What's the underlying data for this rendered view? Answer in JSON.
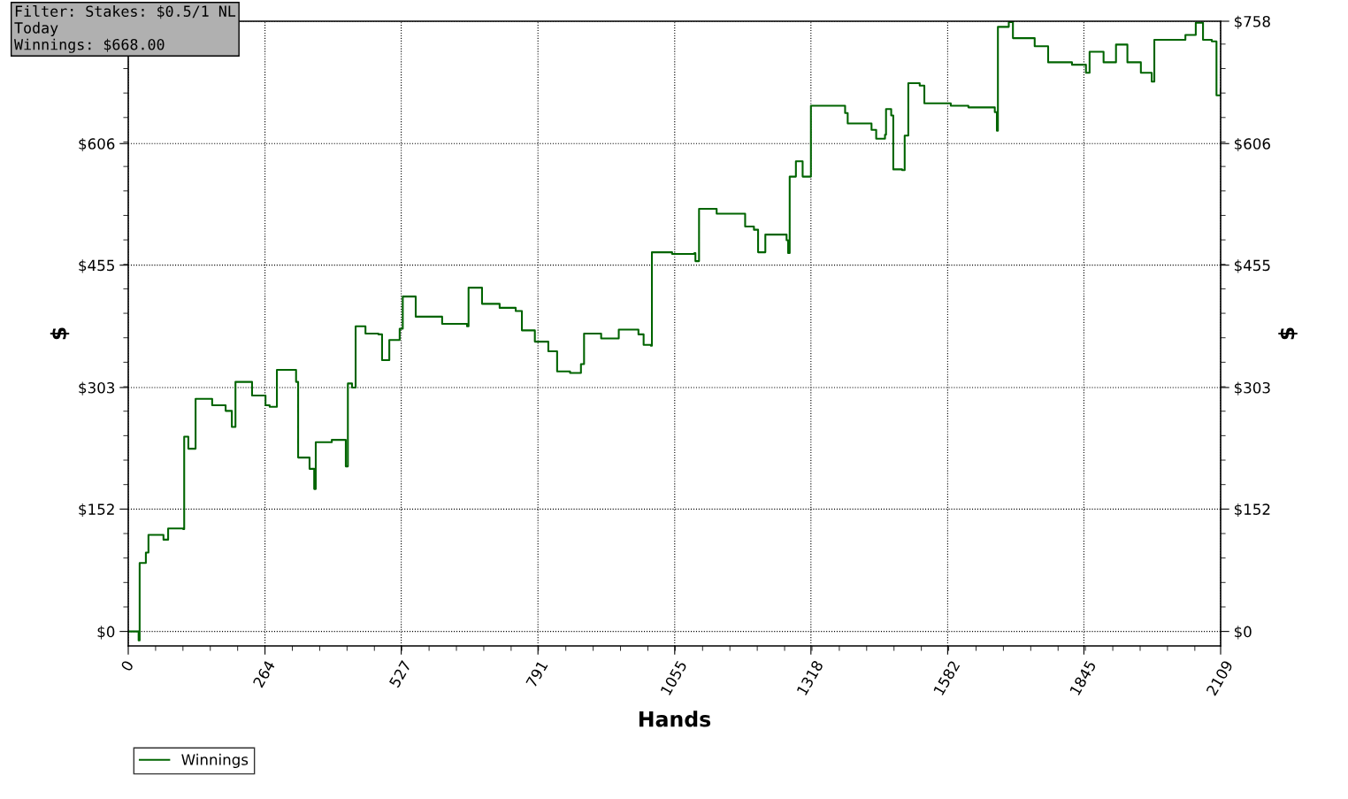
{
  "chart_data": {
    "type": "step",
    "xlabel": "Hands",
    "ylabel": "$",
    "y2label": "$",
    "annotations": [
      "Filter: Stakes: $0.5/1 NL\nToday\nWinnings: $668.00"
    ],
    "xlim": [
      0,
      2109
    ],
    "xticks": [
      0,
      264,
      527,
      791,
      1055,
      1318,
      1582,
      1845,
      2109
    ],
    "ylim": [
      -18,
      758
    ],
    "yticks": [
      {
        "value": 0,
        "label": "$0"
      },
      {
        "value": 152,
        "label": "$152"
      },
      {
        "value": 303,
        "label": "$303"
      },
      {
        "value": 455,
        "label": "$455"
      },
      {
        "value": 606,
        "label": "$606"
      },
      {
        "value": 758,
        "label": null
      }
    ],
    "y2lim": [
      -18,
      758
    ],
    "y2ticks": [
      {
        "value": 0,
        "label": "$0"
      },
      {
        "value": 152,
        "label": "$152"
      },
      {
        "value": 303,
        "label": "$303"
      },
      {
        "value": 455,
        "label": "$455"
      },
      {
        "value": 606,
        "label": "$606"
      },
      {
        "value": 758,
        "label": "$758"
      }
    ],
    "grid": true,
    "legend": "bottom left",
    "marker": "none",
    "line_style": "solid",
    "series": [
      {
        "name": "Winnings",
        "color": "#006400",
        "x": [
          0,
          20,
          22,
          34,
          39,
          68,
          77,
          106,
          108,
          116,
          128,
          130,
          162,
          188,
          200,
          207,
          239,
          265,
          273,
          287,
          324,
          328,
          350,
          359,
          362,
          393,
          420,
          424,
          432,
          439,
          458,
          483,
          490,
          504,
          524,
          530,
          555,
          606,
          654,
          657,
          683,
          717,
          748,
          760,
          785,
          811,
          828,
          853,
          874,
          880,
          913,
          947,
          985,
          995,
          1009,
          1011,
          1050,
          1093,
          1095,
          1102,
          1136,
          1183,
          1191,
          1208,
          1216,
          1230,
          1271,
          1274,
          1277,
          1289,
          1302,
          1318,
          1384,
          1389,
          1435,
          1444,
          1461,
          1463,
          1473,
          1477,
          1494,
          1499,
          1506,
          1528,
          1537,
          1588,
          1622,
          1673,
          1677,
          1679,
          1700,
          1708,
          1750,
          1776,
          1822,
          1849,
          1856,
          1883,
          1907,
          1929,
          1955,
          1976,
          1981,
          2041,
          2061,
          2075,
          2092,
          2101,
          2109
        ],
        "values": [
          0,
          -11,
          85,
          98,
          120,
          114,
          128,
          127,
          242,
          227,
          227,
          289,
          281,
          274,
          254,
          310,
          293,
          281,
          279,
          325,
          310,
          216,
          202,
          177,
          235,
          238,
          205,
          308,
          303,
          379,
          370,
          369,
          337,
          362,
          376,
          416,
          391,
          382,
          379,
          427,
          407,
          402,
          398,
          374,
          360,
          348,
          323,
          321,
          332,
          370,
          364,
          375,
          369,
          356,
          355,
          471,
          469,
          470,
          460,
          525,
          519,
          519,
          503,
          499,
          471,
          493,
          486,
          470,
          565,
          584,
          565,
          653,
          644,
          631,
          623,
          612,
          617,
          649,
          641,
          574,
          573,
          616,
          681,
          678,
          656,
          653,
          651,
          645,
          622,
          751,
          757,
          737,
          727,
          707,
          704,
          694,
          720,
          707,
          729,
          707,
          694,
          683,
          735,
          741,
          756,
          735,
          733,
          666,
          673
        ]
      }
    ]
  }
}
